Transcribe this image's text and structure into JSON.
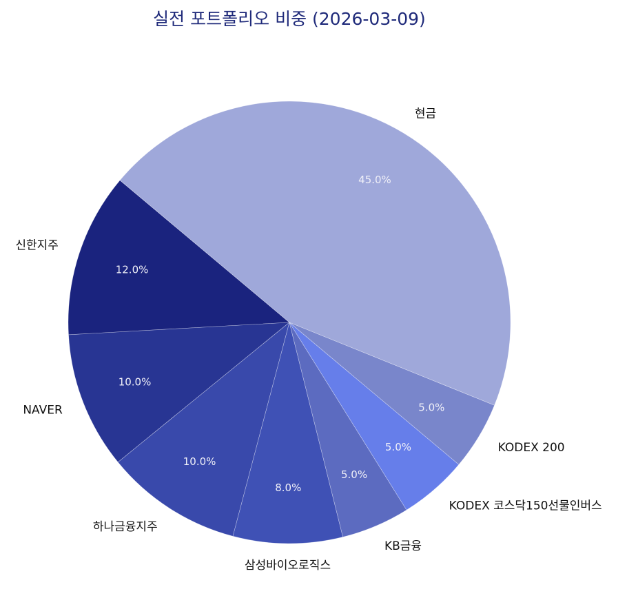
{
  "chart_data": {
    "type": "pie",
    "title": "실전 포트폴리오 비중 (2026-03-09)",
    "start_angle_deg": 140,
    "direction": "counterclockwise",
    "categories": [
      "신한지주",
      "NAVER",
      "하나금융지주",
      "삼성바이오로직스",
      "KB금융",
      "KODEX 코스닥150선물인버스",
      "KODEX 200",
      "현금"
    ],
    "values": [
      12.0,
      10.0,
      10.0,
      8.0,
      5.0,
      5.0,
      5.0,
      45.0
    ],
    "labels_pct": [
      "12.0%",
      "10.0%",
      "10.0%",
      "8.0%",
      "5.0%",
      "5.0%",
      "5.0%",
      "45.0%"
    ],
    "colors": [
      "#1a237e",
      "#283593",
      "#3949ab",
      "#3f51b5",
      "#5c6bc0",
      "#667eea",
      "#7986cb",
      "#9fa8da"
    ],
    "legend": "none"
  }
}
